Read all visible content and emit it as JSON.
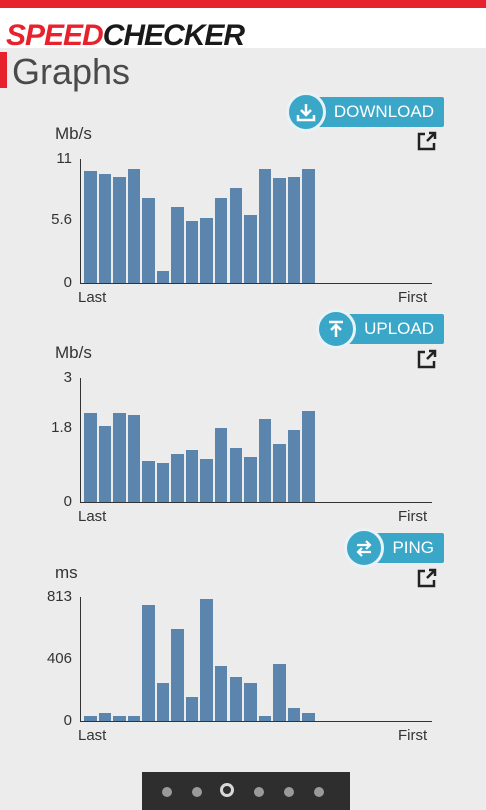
{
  "app": {
    "logo_part1": "SPEED",
    "logo_part2": "CHECKER"
  },
  "page": {
    "title": "Graphs"
  },
  "colors": {
    "accent": "#e8222c",
    "pill": "#3aa6c8",
    "bar": "#5c85ad"
  },
  "charts": [
    {
      "name": "download",
      "button_label": "DOWNLOAD",
      "button_icon": "download-arrow-icon",
      "unit": "Mb/s",
      "ticks": [
        "11",
        "5.6",
        "0"
      ],
      "x_left": "Last",
      "x_right": "First",
      "max": 11,
      "values": [
        9.9,
        9.7,
        9.4,
        10.1,
        7.5,
        1.1,
        6.7,
        5.5,
        5.8,
        7.5,
        8.4,
        6.0,
        10.1,
        9.3,
        9.4,
        10.1
      ]
    },
    {
      "name": "upload",
      "button_label": "UPLOAD",
      "button_icon": "upload-arrow-icon",
      "unit": "Mb/s",
      "ticks": [
        "3",
        "1.8",
        "0"
      ],
      "x_left": "Last",
      "x_right": "First",
      "max": 3,
      "values": [
        2.15,
        1.85,
        2.15,
        2.1,
        0.98,
        0.95,
        1.15,
        1.25,
        1.05,
        1.8,
        1.3,
        1.1,
        2.0,
        1.4,
        1.75,
        2.2
      ]
    },
    {
      "name": "ping",
      "button_label": "PING",
      "button_icon": "swap-arrows-icon",
      "unit": "ms",
      "ticks": [
        "813",
        "406",
        "0"
      ],
      "x_left": "Last",
      "x_right": "First",
      "max": 813,
      "values": [
        35,
        55,
        35,
        35,
        760,
        250,
        605,
        160,
        800,
        360,
        290,
        250,
        30,
        375,
        85,
        55
      ]
    }
  ],
  "pager": {
    "count": 6,
    "active": 2
  }
}
